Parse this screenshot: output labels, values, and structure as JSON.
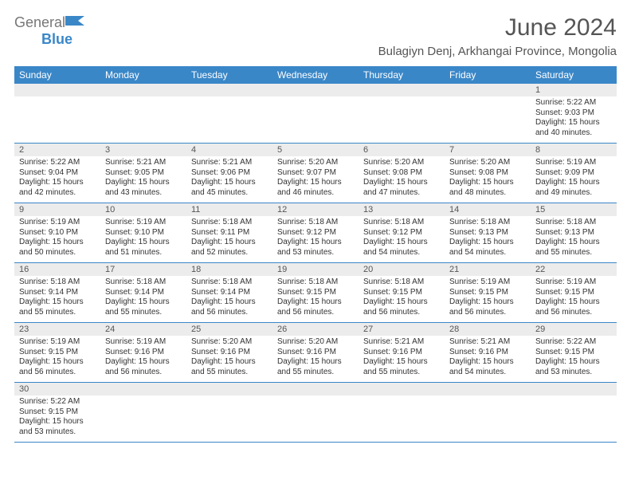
{
  "brand": {
    "part1": "General",
    "part2": "Blue",
    "accent": "#3a87c8"
  },
  "title": "June 2024",
  "location": "Bulagiyn Denj, Arkhangai Province, Mongolia",
  "colors": {
    "header": "#3a87c8",
    "row_grey": "#ececec",
    "line": "#3a87c8",
    "text": "#222222"
  },
  "weekdays": [
    "Sunday",
    "Monday",
    "Tuesday",
    "Wednesday",
    "Thursday",
    "Friday",
    "Saturday"
  ],
  "weeks": [
    [
      null,
      null,
      null,
      null,
      null,
      null,
      {
        "n": "1",
        "sunrise": "5:22 AM",
        "sunset": "9:03 PM",
        "dl": "15 hours and 40 minutes."
      }
    ],
    [
      {
        "n": "2",
        "sunrise": "5:22 AM",
        "sunset": "9:04 PM",
        "dl": "15 hours and 42 minutes."
      },
      {
        "n": "3",
        "sunrise": "5:21 AM",
        "sunset": "9:05 PM",
        "dl": "15 hours and 43 minutes."
      },
      {
        "n": "4",
        "sunrise": "5:21 AM",
        "sunset": "9:06 PM",
        "dl": "15 hours and 45 minutes."
      },
      {
        "n": "5",
        "sunrise": "5:20 AM",
        "sunset": "9:07 PM",
        "dl": "15 hours and 46 minutes."
      },
      {
        "n": "6",
        "sunrise": "5:20 AM",
        "sunset": "9:08 PM",
        "dl": "15 hours and 47 minutes."
      },
      {
        "n": "7",
        "sunrise": "5:20 AM",
        "sunset": "9:08 PM",
        "dl": "15 hours and 48 minutes."
      },
      {
        "n": "8",
        "sunrise": "5:19 AM",
        "sunset": "9:09 PM",
        "dl": "15 hours and 49 minutes."
      }
    ],
    [
      {
        "n": "9",
        "sunrise": "5:19 AM",
        "sunset": "9:10 PM",
        "dl": "15 hours and 50 minutes."
      },
      {
        "n": "10",
        "sunrise": "5:19 AM",
        "sunset": "9:10 PM",
        "dl": "15 hours and 51 minutes."
      },
      {
        "n": "11",
        "sunrise": "5:18 AM",
        "sunset": "9:11 PM",
        "dl": "15 hours and 52 minutes."
      },
      {
        "n": "12",
        "sunrise": "5:18 AM",
        "sunset": "9:12 PM",
        "dl": "15 hours and 53 minutes."
      },
      {
        "n": "13",
        "sunrise": "5:18 AM",
        "sunset": "9:12 PM",
        "dl": "15 hours and 54 minutes."
      },
      {
        "n": "14",
        "sunrise": "5:18 AM",
        "sunset": "9:13 PM",
        "dl": "15 hours and 54 minutes."
      },
      {
        "n": "15",
        "sunrise": "5:18 AM",
        "sunset": "9:13 PM",
        "dl": "15 hours and 55 minutes."
      }
    ],
    [
      {
        "n": "16",
        "sunrise": "5:18 AM",
        "sunset": "9:14 PM",
        "dl": "15 hours and 55 minutes."
      },
      {
        "n": "17",
        "sunrise": "5:18 AM",
        "sunset": "9:14 PM",
        "dl": "15 hours and 55 minutes."
      },
      {
        "n": "18",
        "sunrise": "5:18 AM",
        "sunset": "9:14 PM",
        "dl": "15 hours and 56 minutes."
      },
      {
        "n": "19",
        "sunrise": "5:18 AM",
        "sunset": "9:15 PM",
        "dl": "15 hours and 56 minutes."
      },
      {
        "n": "20",
        "sunrise": "5:18 AM",
        "sunset": "9:15 PM",
        "dl": "15 hours and 56 minutes."
      },
      {
        "n": "21",
        "sunrise": "5:19 AM",
        "sunset": "9:15 PM",
        "dl": "15 hours and 56 minutes."
      },
      {
        "n": "22",
        "sunrise": "5:19 AM",
        "sunset": "9:15 PM",
        "dl": "15 hours and 56 minutes."
      }
    ],
    [
      {
        "n": "23",
        "sunrise": "5:19 AM",
        "sunset": "9:15 PM",
        "dl": "15 hours and 56 minutes."
      },
      {
        "n": "24",
        "sunrise": "5:19 AM",
        "sunset": "9:16 PM",
        "dl": "15 hours and 56 minutes."
      },
      {
        "n": "25",
        "sunrise": "5:20 AM",
        "sunset": "9:16 PM",
        "dl": "15 hours and 55 minutes."
      },
      {
        "n": "26",
        "sunrise": "5:20 AM",
        "sunset": "9:16 PM",
        "dl": "15 hours and 55 minutes."
      },
      {
        "n": "27",
        "sunrise": "5:21 AM",
        "sunset": "9:16 PM",
        "dl": "15 hours and 55 minutes."
      },
      {
        "n": "28",
        "sunrise": "5:21 AM",
        "sunset": "9:16 PM",
        "dl": "15 hours and 54 minutes."
      },
      {
        "n": "29",
        "sunrise": "5:22 AM",
        "sunset": "9:15 PM",
        "dl": "15 hours and 53 minutes."
      }
    ],
    [
      {
        "n": "30",
        "sunrise": "5:22 AM",
        "sunset": "9:15 PM",
        "dl": "15 hours and 53 minutes."
      },
      null,
      null,
      null,
      null,
      null,
      null
    ]
  ],
  "labels": {
    "sunrise": "Sunrise: ",
    "sunset": "Sunset: ",
    "daylight": "Daylight: "
  }
}
